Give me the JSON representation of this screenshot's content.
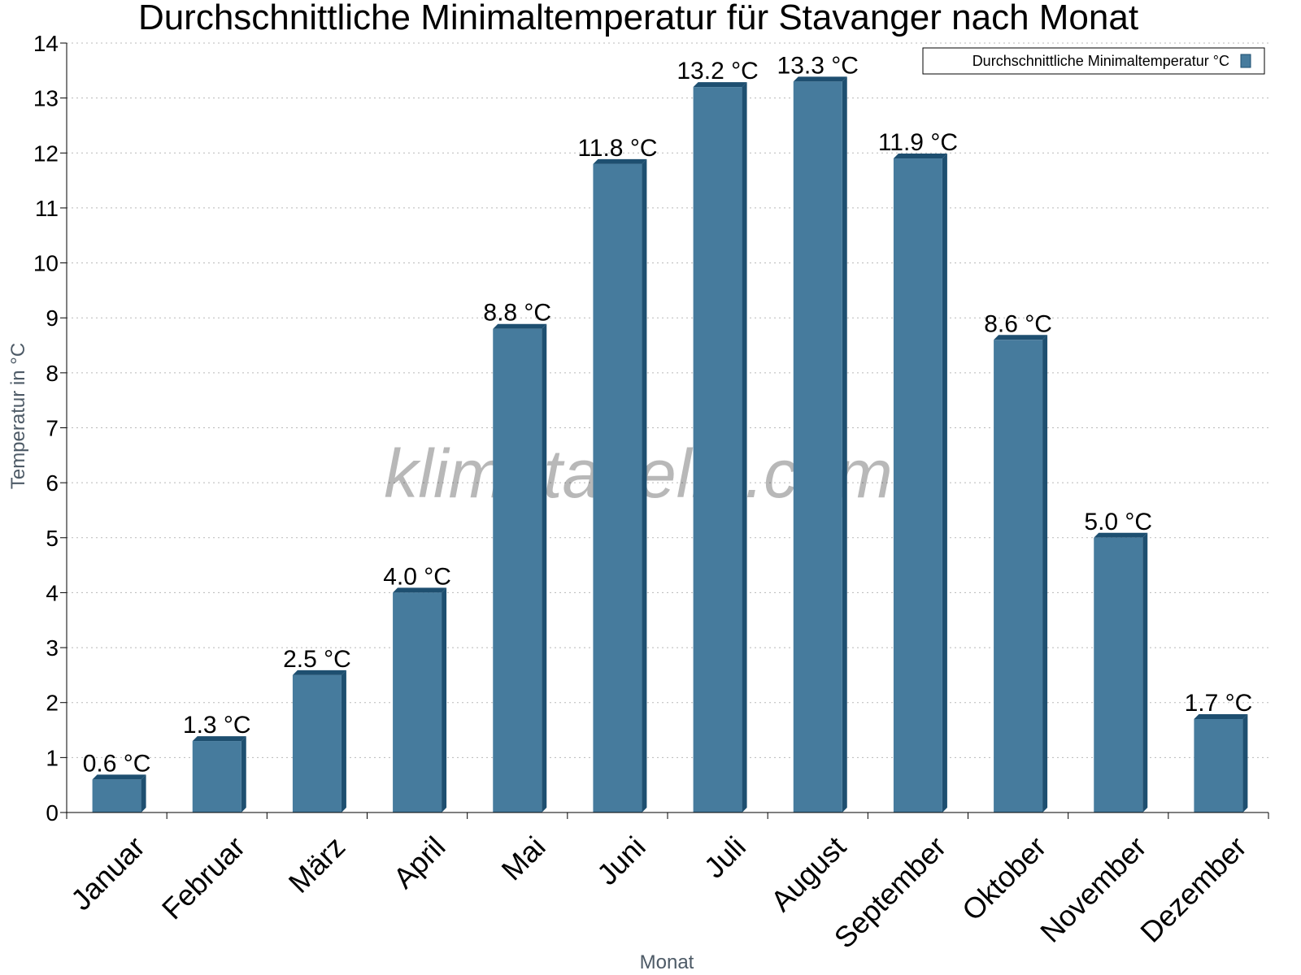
{
  "chart_data": {
    "type": "bar",
    "title": "Durchschnittliche Minimaltemperatur für Stavanger nach Monat",
    "xlabel": "Monat",
    "ylabel": "Temperatur in °C",
    "categories": [
      "Januar",
      "Februar",
      "März",
      "April",
      "Mai",
      "Juni",
      "Juli",
      "August",
      "September",
      "Oktober",
      "November",
      "Dezember"
    ],
    "series": [
      {
        "name": "Durchschnittliche Minimaltemperatur °C",
        "values": [
          0.6,
          1.3,
          2.5,
          4.0,
          8.8,
          11.8,
          13.2,
          13.3,
          11.9,
          8.6,
          5.0,
          1.7
        ],
        "labels": [
          "0.6 °C",
          "1.3 °C",
          "2.5 °C",
          "4.0 °C",
          "8.8 °C",
          "11.8 °C",
          "13.2 °C",
          "13.3 °C",
          "11.9 °C",
          "8.6 °C",
          "5.0 °C",
          "1.7 °C"
        ]
      }
    ],
    "ylim": [
      0,
      14
    ],
    "yticks": [
      "0",
      "1",
      "2",
      "3",
      "4",
      "5",
      "6",
      "7",
      "8",
      "9",
      "10",
      "11",
      "12",
      "13",
      "14"
    ],
    "grid": true,
    "legend_position": "top-right",
    "colors": {
      "bar": "#467b9d",
      "bar_side": "#1e4f70"
    }
  },
  "watermark": "klimatabelle.com"
}
